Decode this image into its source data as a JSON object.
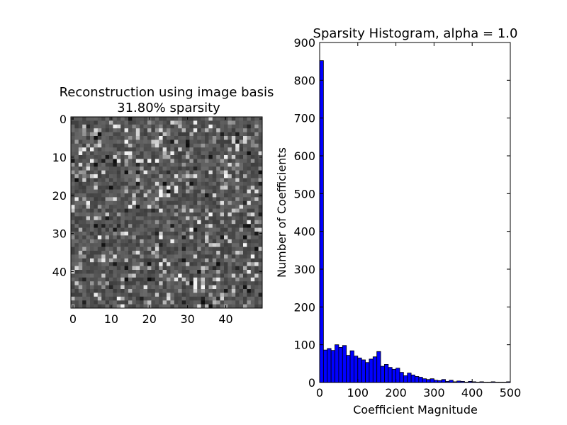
{
  "chart_data": [
    {
      "type": "heatmap",
      "title_line1": "Reconstruction using image basis",
      "title_line2": "31.80% sparsity",
      "xlabel": "",
      "ylabel": "",
      "xlim": [
        0,
        49
      ],
      "ylim": [
        49,
        0
      ],
      "xticks": [
        0,
        10,
        20,
        30,
        40
      ],
      "yticks": [
        0,
        10,
        20,
        30,
        40
      ],
      "grid_size": [
        50,
        50
      ],
      "colormap": "gray"
    },
    {
      "type": "bar",
      "title": "Sparsity Histogram, alpha = 1.0",
      "xlabel": "Coefficient Magnitude",
      "ylabel": "Number of Coefficients",
      "xlim": [
        0,
        500
      ],
      "ylim": [
        0,
        900
      ],
      "xticks": [
        0,
        100,
        200,
        300,
        400,
        500
      ],
      "yticks": [
        0,
        100,
        200,
        300,
        400,
        500,
        600,
        700,
        800,
        900
      ],
      "bin_width": 10,
      "bar_color": "#0000ff",
      "edge_color": "#000000",
      "grid": false,
      "bins": [
        0,
        10,
        20,
        30,
        40,
        50,
        60,
        70,
        80,
        90,
        100,
        110,
        120,
        130,
        140,
        150,
        160,
        170,
        180,
        190,
        200,
        210,
        220,
        230,
        240,
        250,
        260,
        270,
        280,
        290,
        300,
        310,
        320,
        330,
        340,
        350,
        360,
        370,
        380,
        390,
        400,
        410,
        420,
        430,
        440,
        450,
        460,
        470,
        480,
        490
      ],
      "values": [
        852,
        86,
        90,
        85,
        100,
        93,
        98,
        72,
        84,
        70,
        65,
        60,
        53,
        62,
        68,
        82,
        43,
        48,
        40,
        35,
        38,
        27,
        18,
        25,
        20,
        16,
        14,
        10,
        8,
        10,
        6,
        5,
        8,
        3,
        6,
        2,
        4,
        3,
        1,
        3,
        2,
        1,
        2,
        1,
        1,
        2,
        1,
        1,
        1,
        2
      ]
    }
  ]
}
